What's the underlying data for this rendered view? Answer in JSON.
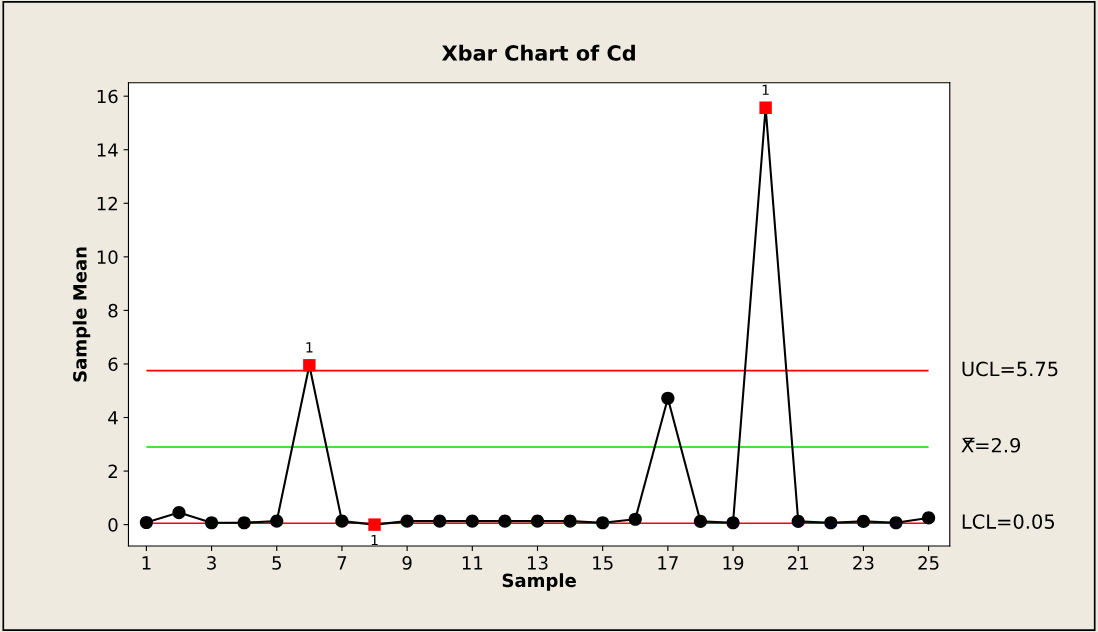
{
  "chart_data": {
    "type": "line",
    "title": "Xbar Chart of Cd",
    "xlabel": "Sample",
    "ylabel": "Sample Mean",
    "x": [
      1,
      2,
      3,
      4,
      5,
      6,
      7,
      8,
      9,
      10,
      11,
      12,
      13,
      14,
      15,
      16,
      17,
      18,
      19,
      20,
      21,
      22,
      23,
      24,
      25
    ],
    "series": [
      {
        "color": "#000000",
        "marker": "none",
        "values": [
          0.08,
          0.45,
          0.07,
          0.07,
          0.13,
          5.95,
          0.13,
          0.0,
          0.13,
          0.13,
          0.13,
          0.13,
          0.13,
          0.13,
          0.07,
          0.2,
          4.72,
          0.12,
          0.07,
          15.57,
          0.12,
          0.07,
          0.12,
          0.07,
          0.25
        ]
      },
      {
        "type": "scatter",
        "color": "#000000",
        "marker": "circle",
        "values": [
          0.08,
          0.45,
          0.07,
          0.07,
          0.13,
          null,
          0.13,
          null,
          0.13,
          0.13,
          0.13,
          0.13,
          0.13,
          0.13,
          0.07,
          0.2,
          4.72,
          0.12,
          0.07,
          null,
          0.12,
          0.07,
          0.12,
          0.07,
          0.25
        ]
      },
      {
        "type": "scatter",
        "color": "#ff0000",
        "marker": "square",
        "values": [
          null,
          null,
          null,
          null,
          null,
          5.95,
          null,
          0.0,
          null,
          null,
          null,
          null,
          null,
          null,
          null,
          null,
          null,
          null,
          null,
          15.57,
          null,
          null,
          null,
          null,
          null
        ]
      }
    ],
    "xlim": [
      0.45,
      25.65
    ],
    "xticks": [
      1,
      3,
      5,
      7,
      9,
      11,
      13,
      15,
      17,
      19,
      21,
      23,
      25
    ],
    "ylim": [
      -0.8,
      16.5
    ],
    "yticks": [
      0,
      2,
      4,
      6,
      8,
      10,
      12,
      14,
      16
    ],
    "ref_lines": [
      {
        "axis": "y",
        "value": 5.75,
        "label": "UCL=5.75",
        "color": "#ff0000"
      },
      {
        "axis": "y",
        "value": 2.9,
        "label": "X̿=2.9",
        "color": "#00dd00"
      },
      {
        "axis": "y",
        "value": 0.05,
        "label": "LCL=0.05",
        "color": "#ff0000"
      }
    ],
    "annotations": [
      {
        "text": "1",
        "x": 6,
        "y": 5.95
      },
      {
        "text": "1",
        "x": 8,
        "y": 0.0
      },
      {
        "text": "1",
        "x": 20,
        "y": 15.57
      }
    ],
    "grid": false,
    "legend": false
  }
}
